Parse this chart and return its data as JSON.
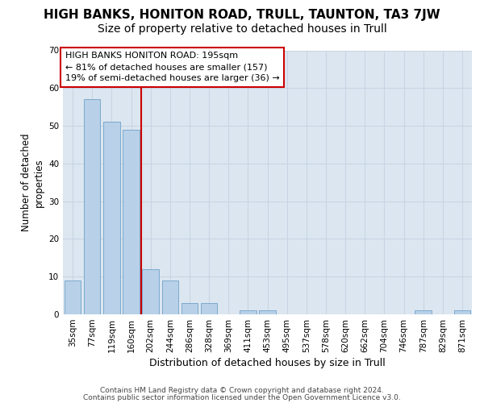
{
  "title1": "HIGH BANKS, HONITON ROAD, TRULL, TAUNTON, TA3 7JW",
  "title2": "Size of property relative to detached houses in Trull",
  "xlabel": "Distribution of detached houses by size in Trull",
  "ylabel": "Number of detached\nproperties",
  "categories": [
    "35sqm",
    "77sqm",
    "119sqm",
    "160sqm",
    "202sqm",
    "244sqm",
    "286sqm",
    "328sqm",
    "369sqm",
    "411sqm",
    "453sqm",
    "495sqm",
    "537sqm",
    "578sqm",
    "620sqm",
    "662sqm",
    "704sqm",
    "746sqm",
    "787sqm",
    "829sqm",
    "871sqm"
  ],
  "values": [
    9,
    57,
    51,
    49,
    12,
    9,
    3,
    3,
    0,
    1,
    1,
    0,
    0,
    0,
    0,
    0,
    0,
    0,
    1,
    0,
    1
  ],
  "bar_color": "#b8d0e8",
  "bar_edge_color": "#7aaacf",
  "vline_color": "#cc0000",
  "vline_x_index": 4,
  "annotation_line1": "HIGH BANKS HONITON ROAD: 195sqm",
  "annotation_line2": "← 81% of detached houses are smaller (157)",
  "annotation_line3": "19% of semi-detached houses are larger (36) →",
  "annotation_box_edge_color": "#cc0000",
  "annotation_bg_color": "#ffffff",
  "ylim": [
    0,
    70
  ],
  "yticks": [
    0,
    10,
    20,
    30,
    40,
    50,
    60,
    70
  ],
  "grid_color": "#c8d4e4",
  "bg_color": "#dce6f0",
  "footer_line1": "Contains HM Land Registry data © Crown copyright and database right 2024.",
  "footer_line2": "Contains public sector information licensed under the Open Government Licence v3.0.",
  "title1_fontsize": 11,
  "title2_fontsize": 10,
  "xlabel_fontsize": 9,
  "ylabel_fontsize": 8.5,
  "tick_fontsize": 7.5,
  "annotation_fontsize": 8,
  "footer_fontsize": 6.5
}
